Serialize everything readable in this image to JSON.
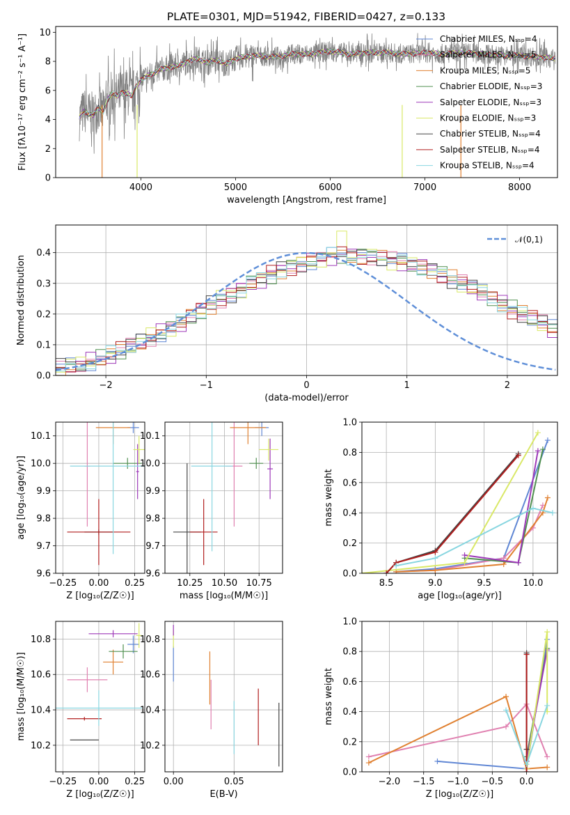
{
  "title": "PLATE=0301, MJD=51942, FIBERID=0427, z=0.133",
  "colors": {
    "Chabrier MILES": "#5f86d4",
    "Salpeter MILES": "#e080b0",
    "Kroupa MILES": "#e08030",
    "Chabrier ELODIE": "#4f8f4f",
    "Salpeter ELODIE": "#9d38b8",
    "Kroupa ELODIE": "#d9e866",
    "Chabrier STELIB": "#444444",
    "Salpeter STELIB": "#b01c1c",
    "Kroupa STELIB": "#88d6e0",
    "data": "#808080",
    "gaussian": "#5f8fd8"
  },
  "chart_data": [
    {
      "type": "line",
      "panel": "spectrum",
      "xlabel": "wavelength [Angstrom, rest frame]",
      "ylabel": "Flux [fλ10⁻¹⁷ erg cm⁻² s⁻¹ A⁻¹]",
      "xlim": [
        3100,
        8400
      ],
      "ylim": [
        0,
        10.4
      ],
      "xticks": [
        4000,
        5000,
        6000,
        7000,
        8000
      ],
      "yticks": [
        0,
        2,
        4,
        6,
        8,
        10
      ],
      "legend_placement": "upper right",
      "legend": [
        "Chabrier MILES, N_SSP=4",
        "Salpeter MILES, N_SSP=5",
        "Kroupa MILES, N_SSP=5",
        "Chabrier ELODIE, N_SSP=3",
        "Salpeter ELODIE, N_SSP=3",
        "Kroupa ELODIE, N_SSP=3",
        "Chabrier STELIB, N_SSP=4",
        "Salpeter STELIB, N_SSP=4",
        "Kroupa STELIB, N_SSP=4"
      ],
      "model_curve": {
        "x": [
          3350,
          3400,
          3450,
          3500,
          3550,
          3600,
          3650,
          3700,
          3750,
          3800,
          3850,
          3900,
          3950,
          4000,
          4100,
          4200,
          4300,
          4400,
          4500,
          4600,
          4700,
          4800,
          4900,
          5000,
          5200,
          5400,
          5600,
          5800,
          6000,
          6200,
          6400,
          6600,
          6800,
          7000,
          7200,
          7400,
          7600,
          7800,
          8000,
          8200,
          8380
        ],
        "y": [
          4.1,
          4.6,
          4.4,
          4.3,
          4.8,
          4.5,
          5.4,
          5.8,
          5.6,
          5.9,
          5.8,
          5.6,
          6.3,
          6.7,
          7.1,
          7.4,
          7.6,
          7.7,
          8.0,
          8.2,
          7.9,
          8.1,
          7.8,
          8.2,
          8.4,
          8.3,
          8.5,
          8.5,
          8.7,
          8.5,
          8.6,
          8.6,
          8.5,
          8.6,
          8.5,
          8.6,
          8.5,
          8.4,
          8.4,
          8.3,
          8.2
        ]
      },
      "data_noise_range": [
        0.2,
        10.3
      ]
    },
    {
      "type": "step",
      "panel": "residual histogram",
      "xlabel": "(data-model)/error",
      "ylabel": "Normed distribution",
      "xlim": [
        -2.5,
        2.5
      ],
      "ylim": [
        0,
        0.49
      ],
      "xticks": [
        -2,
        -1,
        0,
        1,
        2
      ],
      "yticks": [
        0.0,
        0.1,
        0.2,
        0.3,
        0.4
      ],
      "legend": [
        "𝒩(0,1)"
      ],
      "legend_placement": "upper right",
      "bin_edges_start": -2.5,
      "bin_width": 0.1,
      "histogram_base": [
        0.025,
        0.03,
        0.035,
        0.045,
        0.055,
        0.065,
        0.08,
        0.095,
        0.11,
        0.125,
        0.14,
        0.155,
        0.17,
        0.19,
        0.21,
        0.23,
        0.25,
        0.265,
        0.28,
        0.3,
        0.31,
        0.33,
        0.345,
        0.355,
        0.365,
        0.375,
        0.38,
        0.39,
        0.395,
        0.39,
        0.39,
        0.39,
        0.385,
        0.375,
        0.37,
        0.36,
        0.355,
        0.345,
        0.33,
        0.315,
        0.3,
        0.285,
        0.27,
        0.255,
        0.235,
        0.215,
        0.2,
        0.185,
        0.17,
        0.15
      ],
      "peak_value": 0.47
    },
    {
      "type": "errorbar",
      "panel": "age vs Z",
      "xlabel": "Z [log₁₀(Z/Z☉)]",
      "ylabel": "age [log₁₀(age/yr)]",
      "xlim": [
        -0.3,
        0.32
      ],
      "ylim": [
        9.6,
        10.15
      ],
      "xticks": [
        -0.25,
        0.0,
        0.25
      ],
      "yticks": [
        9.6,
        9.7,
        9.8,
        9.9,
        10.0,
        10.1
      ],
      "points": [
        {
          "model": "Chabrier MILES",
          "x": 0.24,
          "xerr": 0.04,
          "y": 10.13,
          "yerr": 0.02
        },
        {
          "model": "Salpeter MILES",
          "x": -0.08,
          "xerr": 0.02,
          "y": 9.99,
          "yerr": 0.22
        },
        {
          "model": "Kroupa MILES",
          "x": 0.1,
          "xerr": 0.12,
          "y": 10.13,
          "yerr": 0.06
        },
        {
          "model": "Chabrier ELODIE",
          "x": 0.2,
          "xerr": 0.1,
          "y": 10.0,
          "yerr": 0.02
        },
        {
          "model": "Salpeter ELODIE",
          "x": 0.27,
          "xerr": 0.01,
          "y": 9.97,
          "yerr": 0.1
        },
        {
          "model": "Kroupa ELODIE",
          "x": 0.28,
          "xerr": 0.04,
          "y": 10.05,
          "yerr": 0.05
        },
        {
          "model": "Chabrier STELIB",
          "x": 0.0,
          "xerr": 0.1,
          "y": 9.75,
          "yerr": 0.01
        },
        {
          "model": "Salpeter STELIB",
          "x": 0.0,
          "xerr": 0.22,
          "y": 9.75,
          "yerr": 0.12
        },
        {
          "model": "Kroupa STELIB",
          "x": 0.1,
          "xerr": 0.3,
          "y": 9.99,
          "yerr": 0.32
        }
      ]
    },
    {
      "type": "errorbar",
      "panel": "age vs mass",
      "xlabel": "mass [log₁₀(M/M☉)]",
      "xlim": [
        10.07,
        10.92
      ],
      "ylim": [
        9.6,
        10.15
      ],
      "xticks": [
        10.25,
        10.5,
        10.75
      ],
      "yticks": [
        9.6,
        9.7,
        9.8,
        9.9,
        10.0,
        10.1
      ],
      "points": [
        {
          "model": "Chabrier MILES",
          "x": 10.77,
          "xerr": 0.05,
          "y": 10.13,
          "yerr": 0.03
        },
        {
          "model": "Salpeter MILES",
          "x": 10.57,
          "xerr": 0.06,
          "y": 9.99,
          "yerr": 0.22
        },
        {
          "model": "Kroupa MILES",
          "x": 10.67,
          "xerr": 0.13,
          "y": 10.13,
          "yerr": 0.06
        },
        {
          "model": "Chabrier ELODIE",
          "x": 10.73,
          "xerr": 0.05,
          "y": 10.0,
          "yerr": 0.02
        },
        {
          "model": "Salpeter ELODIE",
          "x": 10.83,
          "xerr": 0.02,
          "y": 9.98,
          "yerr": 0.11
        },
        {
          "model": "Kroupa ELODIE",
          "x": 10.82,
          "xerr": 0.07,
          "y": 10.05,
          "yerr": 0.04
        },
        {
          "model": "Chabrier STELIB",
          "x": 10.23,
          "xerr": 0.1,
          "y": 9.75,
          "yerr": 0.25
        },
        {
          "model": "Salpeter STELIB",
          "x": 10.35,
          "xerr": 0.1,
          "y": 9.75,
          "yerr": 0.12
        },
        {
          "model": "Kroupa STELIB",
          "x": 10.41,
          "xerr": 0.15,
          "y": 9.99,
          "yerr": 0.31
        }
      ]
    },
    {
      "type": "line",
      "panel": "mass weight vs age",
      "xlabel": "age [log₁₀(age/yr)]",
      "ylabel": "mass weight",
      "xlim": [
        8.25,
        10.25
      ],
      "ylim": [
        0,
        1.0
      ],
      "xticks": [
        8.5,
        9.0,
        9.5,
        10.0
      ],
      "yticks": [
        0.0,
        0.2,
        0.4,
        0.6,
        0.8,
        1.0
      ],
      "series": [
        {
          "model": "Chabrier MILES",
          "x": [
            8.6,
            9.0,
            9.7,
            10.15
          ],
          "y": [
            0.01,
            0.03,
            0.1,
            0.88
          ]
        },
        {
          "model": "Salpeter MILES",
          "x": [
            8.6,
            9.0,
            9.7,
            10.0,
            10.1
          ],
          "y": [
            0.01,
            0.02,
            0.1,
            0.3,
            0.45
          ]
        },
        {
          "model": "Kroupa MILES",
          "x": [
            8.6,
            9.0,
            9.7,
            10.1,
            10.15
          ],
          "y": [
            0.01,
            0.02,
            0.06,
            0.4,
            0.5
          ]
        },
        {
          "model": "Chabrier ELODIE",
          "x": [
            9.3,
            9.85,
            10.1
          ],
          "y": [
            0.1,
            0.07,
            0.82
          ]
        },
        {
          "model": "Salpeter ELODIE",
          "x": [
            9.3,
            9.85,
            10.05
          ],
          "y": [
            0.12,
            0.07,
            0.81
          ]
        },
        {
          "model": "Kroupa ELODIE",
          "x": [
            8.25,
            9.3,
            10.05
          ],
          "y": [
            0.0,
            0.07,
            0.93
          ]
        },
        {
          "model": "Chabrier STELIB",
          "x": [
            8.5,
            8.6,
            9.0,
            9.85
          ],
          "y": [
            0.0,
            0.07,
            0.15,
            0.79
          ]
        },
        {
          "model": "Salpeter STELIB",
          "x": [
            8.5,
            8.6,
            9.0,
            9.85
          ],
          "y": [
            0.0,
            0.07,
            0.14,
            0.78
          ]
        },
        {
          "model": "Kroupa STELIB",
          "x": [
            8.6,
            9.0,
            10.0,
            10.2
          ],
          "y": [
            0.05,
            0.1,
            0.43,
            0.4
          ]
        }
      ]
    },
    {
      "type": "errorbar",
      "panel": "mass vs Z",
      "xlabel": "Z [log₁₀(Z/Z☉)]",
      "ylabel": "mass [log₁₀(M/M☉)]",
      "xlim": [
        -0.3,
        0.32
      ],
      "ylim": [
        10.05,
        10.9
      ],
      "xticks": [
        -0.25,
        0.0,
        0.25
      ],
      "yticks": [
        10.2,
        10.4,
        10.6,
        10.8
      ],
      "points": [
        {
          "model": "Chabrier MILES",
          "x": 0.24,
          "xerr": 0.04,
          "y": 10.77,
          "yerr": 0.05
        },
        {
          "model": "Salpeter MILES",
          "x": -0.08,
          "xerr": 0.14,
          "y": 10.57,
          "yerr": 0.07
        },
        {
          "model": "Kroupa MILES",
          "x": 0.1,
          "xerr": 0.07,
          "y": 10.67,
          "yerr": 0.07
        },
        {
          "model": "Chabrier ELODIE",
          "x": 0.17,
          "xerr": 0.1,
          "y": 10.73,
          "yerr": 0.04
        },
        {
          "model": "Salpeter ELODIE",
          "x": 0.1,
          "xerr": 0.17,
          "y": 10.83,
          "yerr": 0.02
        },
        {
          "model": "Kroupa ELODIE",
          "x": 0.28,
          "xerr": 0.02,
          "y": 10.82,
          "yerr": 0.07
        },
        {
          "model": "Chabrier STELIB",
          "x": -0.1,
          "xerr": 0.1,
          "y": 10.23,
          "yerr": 0.0
        },
        {
          "model": "Salpeter STELIB",
          "x": -0.1,
          "xerr": 0.12,
          "y": 10.35,
          "yerr": 0.01
        },
        {
          "model": "Kroupa STELIB",
          "x": 0.0,
          "xerr": 0.3,
          "y": 10.41,
          "yerr": 0.1
        }
      ]
    },
    {
      "type": "errorbar",
      "panel": "mass vs E(B-V)",
      "xlabel": "E(B-V)",
      "xlim": [
        -0.007,
        0.09
      ],
      "ylim": [
        10.05,
        10.9
      ],
      "xticks": [
        0.0,
        0.05
      ],
      "yticks": [
        10.2,
        10.4,
        10.6,
        10.8
      ],
      "points": [
        {
          "model": "Chabrier MILES",
          "x": 0.0,
          "yerr": 0.1,
          "y": 10.66
        },
        {
          "model": "Kroupa MILES",
          "x": 0.03,
          "yerr": 0.15,
          "y": 10.58
        },
        {
          "model": "Salpeter MILES",
          "x": 0.031,
          "yerr": 0.14,
          "y": 10.43
        },
        {
          "model": "Kroupa STELIB",
          "x": 0.05,
          "yerr": 0.15,
          "y": 10.3
        },
        {
          "model": "Salpeter STELIB",
          "x": 0.07,
          "yerr": 0.16,
          "y": 10.36
        },
        {
          "model": "Chabrier STELIB",
          "x": 0.087,
          "yerr": 0.18,
          "y": 10.26
        },
        {
          "model": "Kroupa ELODIE",
          "x": 0.0,
          "yerr": 0.05,
          "y": 10.8
        },
        {
          "model": "Salpeter ELODIE",
          "x": 0.0,
          "yerr": 0.03,
          "y": 10.85
        }
      ]
    },
    {
      "type": "line",
      "panel": "mass weight vs Z",
      "xlabel": "Z [log₁₀(Z/Z☉)]",
      "ylabel": "mass weight",
      "xlim": [
        -2.4,
        0.45
      ],
      "ylim": [
        0,
        1.0
      ],
      "xticks": [
        -2.0,
        -1.5,
        -1.0,
        -0.5,
        0.0
      ],
      "yticks": [
        0.0,
        0.2,
        0.4,
        0.6,
        0.8,
        1.0
      ],
      "series": [
        {
          "model": "Chabrier MILES",
          "x": [
            -1.3,
            0.0,
            0.3
          ],
          "y": [
            0.07,
            0.02,
            0.88
          ]
        },
        {
          "model": "Salpeter MILES",
          "x": [
            -2.3,
            -0.3,
            0.0,
            0.3
          ],
          "y": [
            0.1,
            0.3,
            0.45,
            0.1
          ]
        },
        {
          "model": "Kroupa MILES",
          "x": [
            -2.3,
            -0.3,
            0.0,
            0.3
          ],
          "y": [
            0.06,
            0.5,
            0.02,
            0.03
          ]
        },
        {
          "model": "Chabrier ELODIE",
          "x": [
            0.0,
            0.0,
            0.3
          ],
          "y": [
            0.07,
            0.1,
            0.82
          ]
        },
        {
          "model": "Salpeter ELODIE",
          "x": [
            0.0,
            0.3
          ],
          "y": [
            0.07,
            0.81
          ]
        },
        {
          "model": "Kroupa ELODIE",
          "x": [
            0.0,
            0.3,
            0.3
          ],
          "y": [
            0.02,
            0.93,
            0.4
          ]
        },
        {
          "model": "Chabrier STELIB",
          "x": [
            0.0,
            0.0
          ],
          "y": [
            0.15,
            0.79
          ]
        },
        {
          "model": "Salpeter STELIB",
          "x": [
            0.0,
            0.0
          ],
          "y": [
            0.0,
            0.78
          ]
        },
        {
          "model": "Kroupa STELIB",
          "x": [
            -0.3,
            0.0,
            0.3
          ],
          "y": [
            0.41,
            0.05,
            0.44
          ]
        }
      ]
    }
  ]
}
